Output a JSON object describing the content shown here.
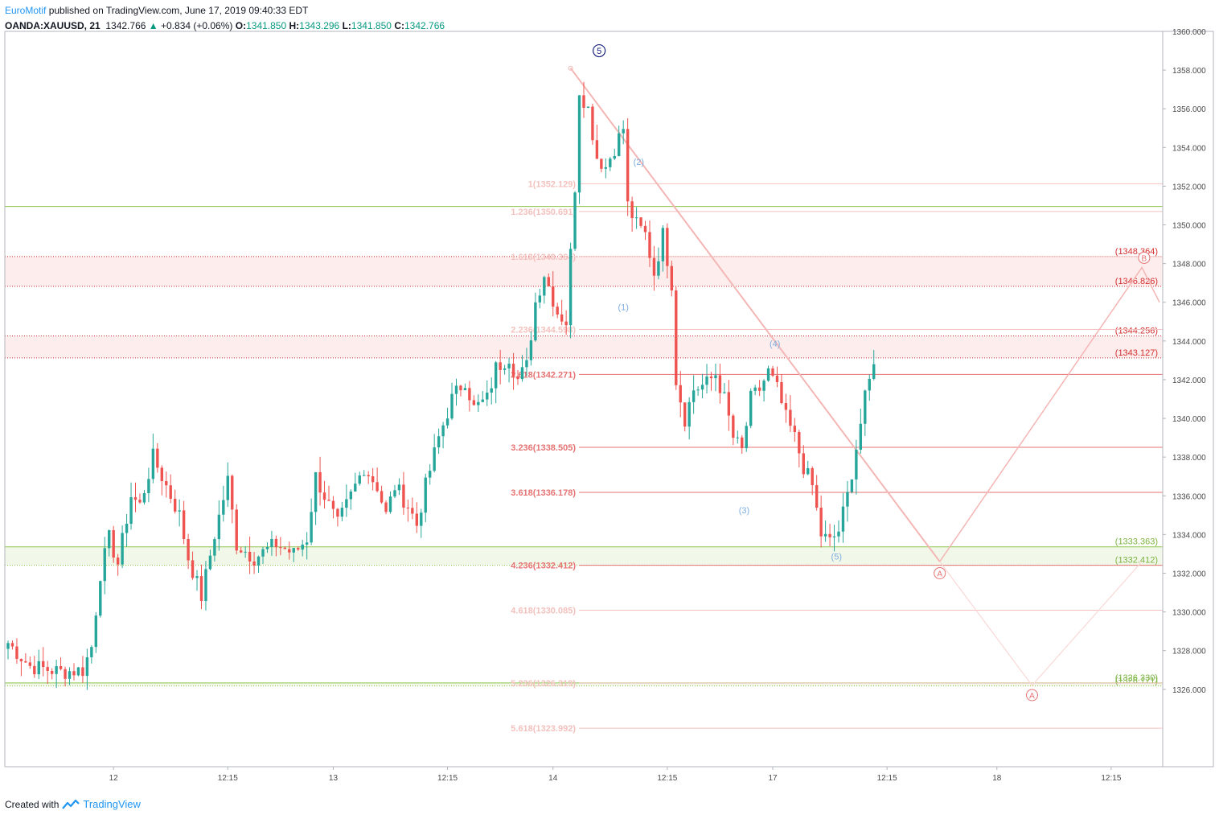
{
  "header": {
    "publisher": "EuroMotif",
    "published_text": "published on TradingView.com, June 17, 2019 09:40:33 EDT",
    "symbol": "OANDA:XAUUSD, 21",
    "last": "1342.766",
    "change_arrow": "▲",
    "change": "+0.834 (+0.06%)",
    "o_label": "O:",
    "o_value": "1341.850",
    "h_label": "H:",
    "h_value": "1343.296",
    "l_label": "L:",
    "l_value": "1341.850",
    "c_label": "C:",
    "c_value": "1342.766"
  },
  "footer": {
    "created_with": "Created with",
    "brand": "TradingView",
    "logo_icon": "tradingview-logo-icon"
  },
  "colors": {
    "up": "#26a69a",
    "down": "#ef5350",
    "accent": "#2196f3",
    "fib_strong": "#e57373",
    "fib_faint": "#f3c1bd",
    "green_zone": "#8bc34a",
    "elliott_blue": "#7eaee0",
    "wave5_navy": "#1a237e"
  },
  "chart_data": {
    "type": "candlestick",
    "title": "OANDA:XAUUSD, 21",
    "ylim": [
      1322,
      1360
    ],
    "y_ticks": [
      "1326.000",
      "1328.000",
      "1330.000",
      "1332.000",
      "1334.000",
      "1336.000",
      "1338.000",
      "1340.000",
      "1342.000",
      "1344.000",
      "1346.000",
      "1348.000",
      "1350.000",
      "1352.000",
      "1354.000",
      "1356.000",
      "1358.000",
      "1360.000"
    ],
    "x_range": [
      0,
      262
    ],
    "x_ticks": [
      {
        "label": "12",
        "x": 24
      },
      {
        "label": "12:15",
        "x": 50
      },
      {
        "label": "13",
        "x": 74
      },
      {
        "label": "12:15",
        "x": 100
      },
      {
        "label": "14",
        "x": 124
      },
      {
        "label": "12:15",
        "x": 150
      },
      {
        "label": "17",
        "x": 174
      },
      {
        "label": "12:15",
        "x": 200
      },
      {
        "label": "18",
        "x": 225
      },
      {
        "label": "12:15",
        "x": 251
      }
    ],
    "anchors": [
      [
        0,
        1328.4
      ],
      [
        5,
        1327.2
      ],
      [
        12,
        1326.9
      ],
      [
        17,
        1327.0
      ],
      [
        19,
        1328.2
      ],
      [
        21,
        1332.0
      ],
      [
        23,
        1333.8
      ],
      [
        25,
        1332.5
      ],
      [
        28,
        1336.0
      ],
      [
        30,
        1335.5
      ],
      [
        33,
        1338.0
      ],
      [
        36,
        1336.5
      ],
      [
        39,
        1335.0
      ],
      [
        41,
        1332.8
      ],
      [
        44,
        1330.8
      ],
      [
        47,
        1334.0
      ],
      [
        50,
        1336.8
      ],
      [
        52,
        1333.5
      ],
      [
        56,
        1332.8
      ],
      [
        61,
        1333.5
      ],
      [
        65,
        1333.0
      ],
      [
        68,
        1333.8
      ],
      [
        70,
        1337.0
      ],
      [
        72,
        1336.0
      ],
      [
        75,
        1334.5
      ],
      [
        78,
        1336.0
      ],
      [
        81,
        1337.5
      ],
      [
        84,
        1336.5
      ],
      [
        86,
        1335.0
      ],
      [
        88,
        1336.5
      ],
      [
        91,
        1335.5
      ],
      [
        93,
        1334.5
      ],
      [
        95,
        1336.5
      ],
      [
        98,
        1339.0
      ],
      [
        101,
        1341.0
      ],
      [
        104,
        1342.0
      ],
      [
        106,
        1340.5
      ],
      [
        109,
        1341.0
      ],
      [
        111,
        1342.6
      ],
      [
        114,
        1343.2
      ],
      [
        116,
        1342.0
      ],
      [
        118,
        1342.7
      ],
      [
        120,
        1346.0
      ],
      [
        122,
        1347.5
      ],
      [
        125,
        1345.5
      ],
      [
        127,
        1345.0
      ],
      [
        129,
        1352.0
      ],
      [
        130,
        1357.0
      ],
      [
        132,
        1356.0
      ],
      [
        134,
        1353.5
      ],
      [
        136,
        1353.0
      ],
      [
        138,
        1354.0
      ],
      [
        140,
        1355.0
      ],
      [
        141,
        1351.0
      ],
      [
        143,
        1350.0
      ],
      [
        145,
        1349.5
      ],
      [
        147,
        1347.5
      ],
      [
        149,
        1349.5
      ],
      [
        151,
        1347.0
      ],
      [
        152,
        1342.0
      ],
      [
        154,
        1340.0
      ],
      [
        156,
        1341.5
      ],
      [
        159,
        1341.8
      ],
      [
        161,
        1342.3
      ],
      [
        163,
        1341.0
      ],
      [
        165,
        1339.0
      ],
      [
        167,
        1338.3
      ],
      [
        169,
        1341.0
      ],
      [
        171,
        1341.5
      ],
      [
        173,
        1342.4
      ],
      [
        175,
        1341.5
      ],
      [
        177,
        1340.0
      ],
      [
        179,
        1339.0
      ],
      [
        181,
        1337.5
      ],
      [
        183,
        1336.5
      ],
      [
        185,
        1334.0
      ],
      [
        187,
        1333.6
      ],
      [
        189,
        1334.2
      ],
      [
        191,
        1336.0
      ],
      [
        193,
        1338.5
      ],
      [
        195,
        1341.0
      ],
      [
        197,
        1342.8
      ]
    ],
    "fib_levels": [
      {
        "label": "1(1352.129)",
        "value": 1352.129,
        "strength": "faint"
      },
      {
        "label": "1.236(1350.691)",
        "value": 1350.691,
        "strength": "faint"
      },
      {
        "label": "1.618(1348.364)",
        "value": 1348.364,
        "strength": "faint"
      },
      {
        "label": "2.236(1344.598)",
        "value": 1344.598,
        "strength": "faint"
      },
      {
        "label": "2.618(1342.271)",
        "value": 1342.271,
        "strength": "strong"
      },
      {
        "label": "3.236(1338.505)",
        "value": 1338.505,
        "strength": "strong"
      },
      {
        "label": "3.618(1336.178)",
        "value": 1336.178,
        "strength": "strong"
      },
      {
        "label": "4.236(1332.412)",
        "value": 1332.412,
        "strength": "strong"
      },
      {
        "label": "4.618(1330.085)",
        "value": 1330.085,
        "strength": "faint"
      },
      {
        "label": "5.236(1326.319)",
        "value": 1326.319,
        "strength": "faint"
      },
      {
        "label": "5.618(1323.992)",
        "value": 1323.992,
        "strength": "faint"
      }
    ],
    "resistance_zones": [
      {
        "high": 1348.364,
        "low": 1346.826,
        "label_high": "(1348.364)",
        "label_low": "(1346.826)"
      },
      {
        "high": 1344.256,
        "low": 1343.127,
        "label_high": "(1344.256)",
        "label_low": "(1343.127)"
      }
    ],
    "support_zones": [
      {
        "high": 1333.363,
        "low": 1332.412,
        "label_high": "(1333.363)",
        "label_low": "(1332.412)"
      },
      {
        "high": 1326.33,
        "low": 1326.171,
        "label_high": "(1326.330)",
        "label_low": "(1326.171)"
      }
    ],
    "green_line_value": 1350.95,
    "elliott_labels": [
      {
        "text": "(1)",
        "x": 140,
        "y": 1345.6
      },
      {
        "text": "(2)",
        "x": 143.5,
        "y": 1353.1
      },
      {
        "text": "(3)",
        "x": 167.5,
        "y": 1335.1
      },
      {
        "text": "(4)",
        "x": 174.5,
        "y": 1343.7
      },
      {
        "text": "(5)",
        "x": 188.5,
        "y": 1332.7
      }
    ],
    "wave5_label": {
      "text": "5",
      "x": 134.5,
      "y": 1359.0
    },
    "trend_line": [
      [
        128,
        1358.1
      ],
      [
        212,
        1332.6
      ]
    ],
    "projection_path": [
      [
        212,
        1332.6
      ],
      [
        258,
        1347.8
      ],
      [
        262,
        1346.0
      ]
    ],
    "projection_path_faint": [
      [
        212,
        1332.6
      ],
      [
        233,
        1326.2
      ],
      [
        258,
        1332.6
      ]
    ],
    "projection_labels": [
      {
        "text": "A",
        "x": 212,
        "y": 1332.0
      },
      {
        "text": "B",
        "x": 258.5,
        "y": 1348.3
      },
      {
        "text": "A",
        "x": 233,
        "y": 1325.7
      }
    ]
  }
}
